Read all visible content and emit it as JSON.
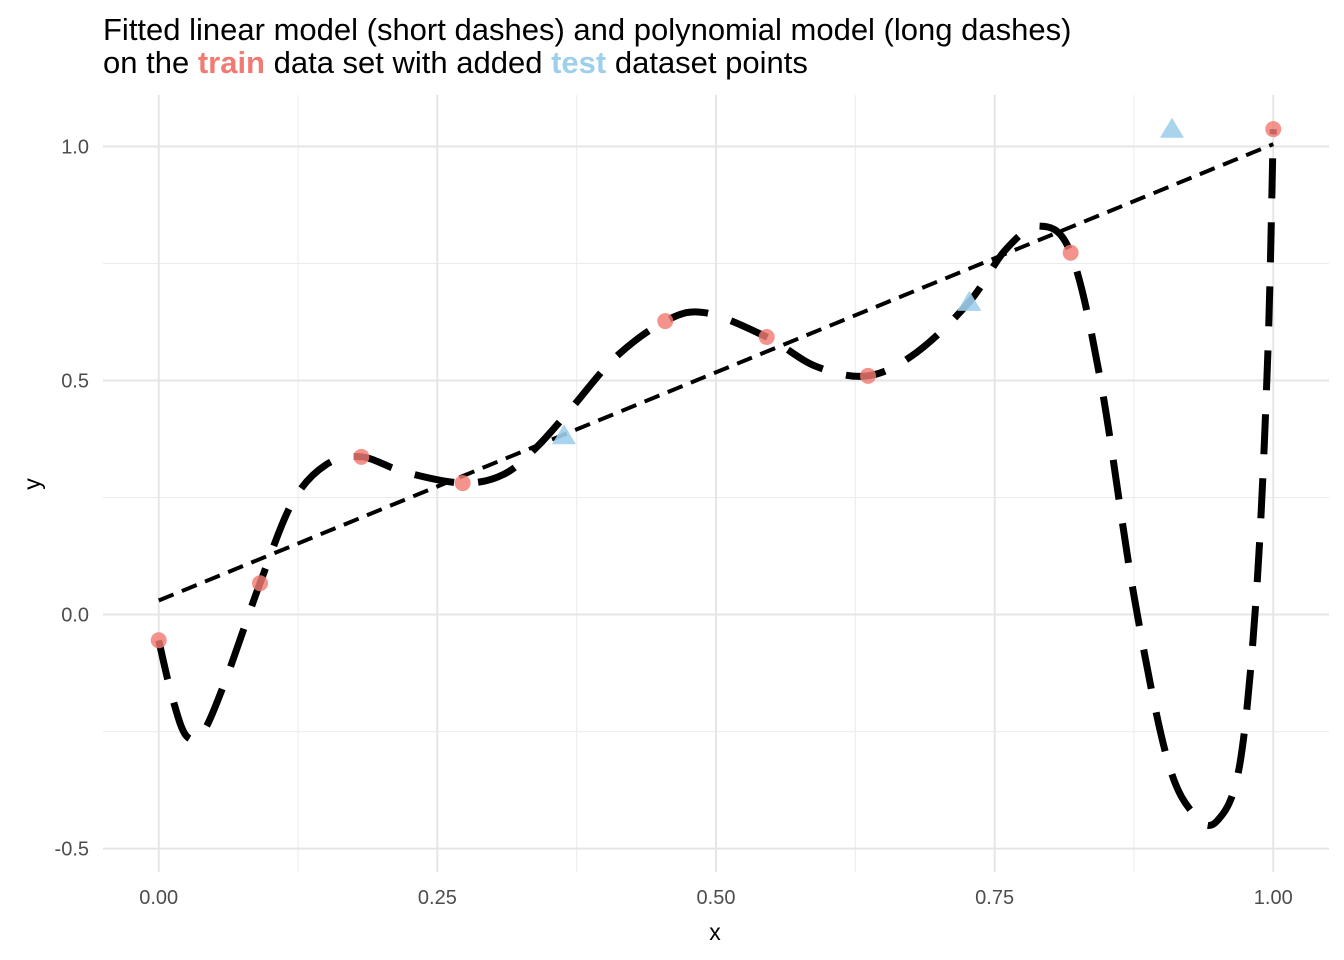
{
  "chart_data": {
    "type": "scatter",
    "title_line1": "Fitted linear model (short dashes) and polynomial model (long dashes)",
    "title_line2": {
      "prefix": "on the ",
      "train_word": "train",
      "middle": " data set with added ",
      "test_word": "test",
      "suffix": " dataset points"
    },
    "xlabel": "x",
    "ylabel": "y",
    "xlim": [
      -0.05,
      1.05
    ],
    "ylim": [
      -0.55,
      1.11
    ],
    "x_ticks": [
      0.0,
      0.25,
      0.5,
      0.75,
      1.0
    ],
    "x_tick_labels": [
      "0.00",
      "0.25",
      "0.50",
      "0.75",
      "1.00"
    ],
    "y_ticks": [
      -0.5,
      0.0,
      0.5,
      1.0
    ],
    "y_tick_labels": [
      "-0.5",
      "0.0",
      "0.5",
      "1.0"
    ],
    "grid": true,
    "colors": {
      "train": "#f07b72",
      "test": "#9ecfeb",
      "fit": "#000000"
    },
    "train_points": [
      {
        "x": 0.0,
        "y": -0.055
      },
      {
        "x": 0.0909,
        "y": 0.067
      },
      {
        "x": 0.1818,
        "y": 0.337
      },
      {
        "x": 0.2727,
        "y": 0.281
      },
      {
        "x": 0.4545,
        "y": 0.627
      },
      {
        "x": 0.5455,
        "y": 0.593
      },
      {
        "x": 0.6364,
        "y": 0.51
      },
      {
        "x": 0.8182,
        "y": 0.773
      },
      {
        "x": 1.0,
        "y": 1.037
      }
    ],
    "test_points": [
      {
        "x": 0.3636,
        "y": 0.383
      },
      {
        "x": 0.7273,
        "y": 0.668
      },
      {
        "x": 0.9091,
        "y": 1.038
      }
    ],
    "linear_model": [
      {
        "x": 0.0,
        "y": 0.03
      },
      {
        "x": 1.0,
        "y": 1.005
      }
    ],
    "polynomial_model": [
      {
        "x": 0.0,
        "y": -0.055
      },
      {
        "x": 0.0125,
        "y": -0.18
      },
      {
        "x": 0.025,
        "y": -0.26
      },
      {
        "x": 0.04,
        "y": -0.25
      },
      {
        "x": 0.06,
        "y": -0.14
      },
      {
        "x": 0.0909,
        "y": 0.067
      },
      {
        "x": 0.12,
        "y": 0.24
      },
      {
        "x": 0.15,
        "y": 0.32
      },
      {
        "x": 0.1818,
        "y": 0.337
      },
      {
        "x": 0.22,
        "y": 0.305
      },
      {
        "x": 0.2727,
        "y": 0.281
      },
      {
        "x": 0.31,
        "y": 0.3
      },
      {
        "x": 0.34,
        "y": 0.36
      },
      {
        "x": 0.37,
        "y": 0.44
      },
      {
        "x": 0.41,
        "y": 0.55
      },
      {
        "x": 0.4545,
        "y": 0.627
      },
      {
        "x": 0.49,
        "y": 0.645
      },
      {
        "x": 0.5455,
        "y": 0.593
      },
      {
        "x": 0.59,
        "y": 0.53
      },
      {
        "x": 0.6364,
        "y": 0.51
      },
      {
        "x": 0.68,
        "y": 0.56
      },
      {
        "x": 0.7273,
        "y": 0.668
      },
      {
        "x": 0.76,
        "y": 0.78
      },
      {
        "x": 0.79,
        "y": 0.83
      },
      {
        "x": 0.8182,
        "y": 0.773
      },
      {
        "x": 0.845,
        "y": 0.5
      },
      {
        "x": 0.875,
        "y": 0.04
      },
      {
        "x": 0.905,
        "y": -0.31
      },
      {
        "x": 0.93,
        "y": -0.43
      },
      {
        "x": 0.95,
        "y": -0.44
      },
      {
        "x": 0.97,
        "y": -0.32
      },
      {
        "x": 0.985,
        "y": 0.05
      },
      {
        "x": 0.995,
        "y": 0.55
      },
      {
        "x": 1.0,
        "y": 1.037
      }
    ]
  }
}
